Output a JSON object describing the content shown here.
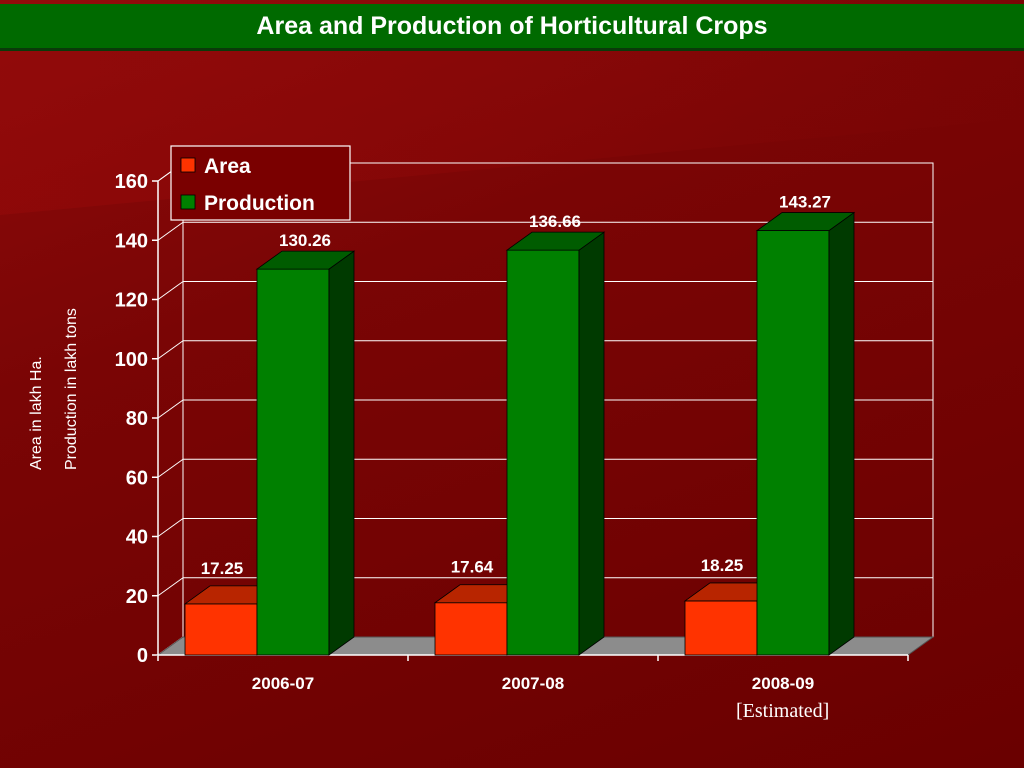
{
  "title": "Area and Production of  Horticultural Crops",
  "note": "[Estimated]",
  "colors": {
    "area": "#ff3300",
    "production": "#008000",
    "title_bar": "#006a00",
    "background": "#7a0000"
  },
  "chart_data": {
    "type": "bar",
    "categories": [
      "2006-07",
      "2007-08",
      "2008-09"
    ],
    "series": [
      {
        "name": "Area",
        "values": [
          17.25,
          17.64,
          18.25
        ]
      },
      {
        "name": "Production",
        "values": [
          130.26,
          136.66,
          143.27
        ]
      }
    ],
    "ylabel_lines": [
      "Area in lakh Ha.",
      "Production in lakh tons"
    ],
    "ylim": [
      0,
      160
    ],
    "yticks": [
      0,
      20,
      40,
      60,
      80,
      100,
      120,
      140,
      160
    ],
    "grid": true,
    "legend_position": "top-left",
    "style": "3d"
  }
}
